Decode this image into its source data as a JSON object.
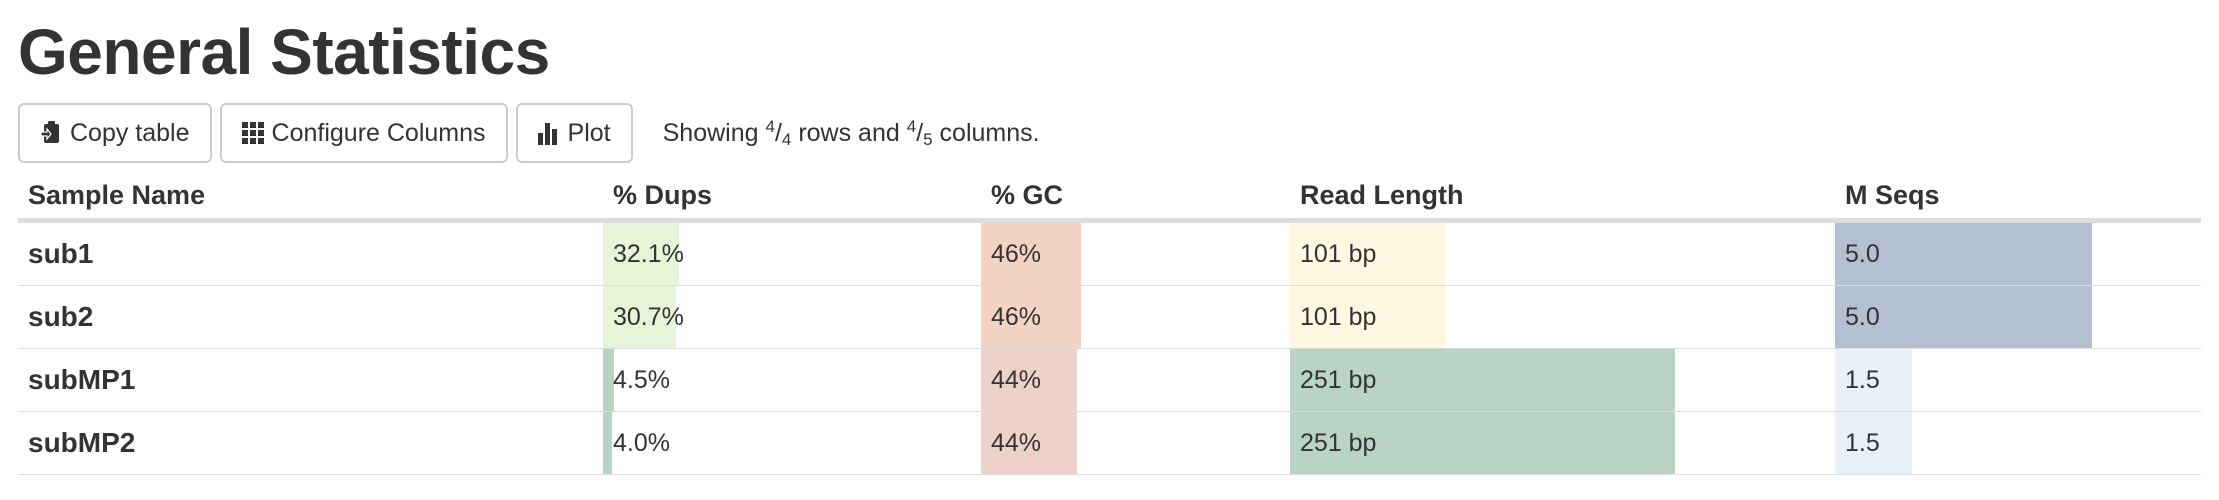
{
  "title": "General Statistics",
  "toolbar": {
    "copy_label": "Copy table",
    "configure_label": "Configure Columns",
    "plot_label": "Plot",
    "showing": {
      "prefix": "Showing ",
      "rows_shown": "4",
      "rows_total": "4",
      "middle": " rows and ",
      "cols_shown": "4",
      "cols_total": "5",
      "suffix": " columns."
    }
  },
  "table": {
    "headers": [
      "Sample Name",
      "% Dups",
      "% GC",
      "Read Length",
      "M Seqs"
    ],
    "rows": [
      {
        "name": "sub1",
        "dups": "32.1%",
        "dups_fill": 0.321,
        "dups_color": "#e6f4d7",
        "gc": "46%",
        "gc_fill": 0.46,
        "gc_color": "#f3d3c3",
        "readlen": "101 bp",
        "readlen_fill": 0.402,
        "readlen_color": "#fef8e3",
        "mseqs": "5.0",
        "mseqs_fill": 1.0,
        "mseqs_color": "#b5bfd2"
      },
      {
        "name": "sub2",
        "dups": "30.7%",
        "dups_fill": 0.307,
        "dups_color": "#e6f4d7",
        "gc": "46%",
        "gc_fill": 0.46,
        "gc_color": "#f3d3c3",
        "readlen": "101 bp",
        "readlen_fill": 0.402,
        "readlen_color": "#fef8e3",
        "mseqs": "5.0",
        "mseqs_fill": 1.0,
        "mseqs_color": "#b5bfd2"
      },
      {
        "name": "subMP1",
        "dups": "4.5%",
        "dups_fill": 0.045,
        "dups_color": "#b7d4c3",
        "gc": "44%",
        "gc_fill": 0.44,
        "gc_color": "#eed1c9",
        "readlen": "251 bp",
        "readlen_fill": 1.0,
        "readlen_color": "#b9d4c5",
        "mseqs": "1.5",
        "mseqs_fill": 0.3,
        "mseqs_color": "#e8f0f8"
      },
      {
        "name": "subMP2",
        "dups": "4.0%",
        "dups_fill": 0.04,
        "dups_color": "#b7d4c3",
        "gc": "44%",
        "gc_fill": 0.44,
        "gc_color": "#eed1c9",
        "readlen": "251 bp",
        "readlen_fill": 1.0,
        "readlen_color": "#b9d4c5",
        "mseqs": "1.5",
        "mseqs_fill": 0.3,
        "mseqs_color": "#e8f0f8"
      }
    ]
  },
  "icons": {
    "copy": "clipboard-icon",
    "configure": "grid-icon",
    "plot": "bar-chart-icon"
  }
}
